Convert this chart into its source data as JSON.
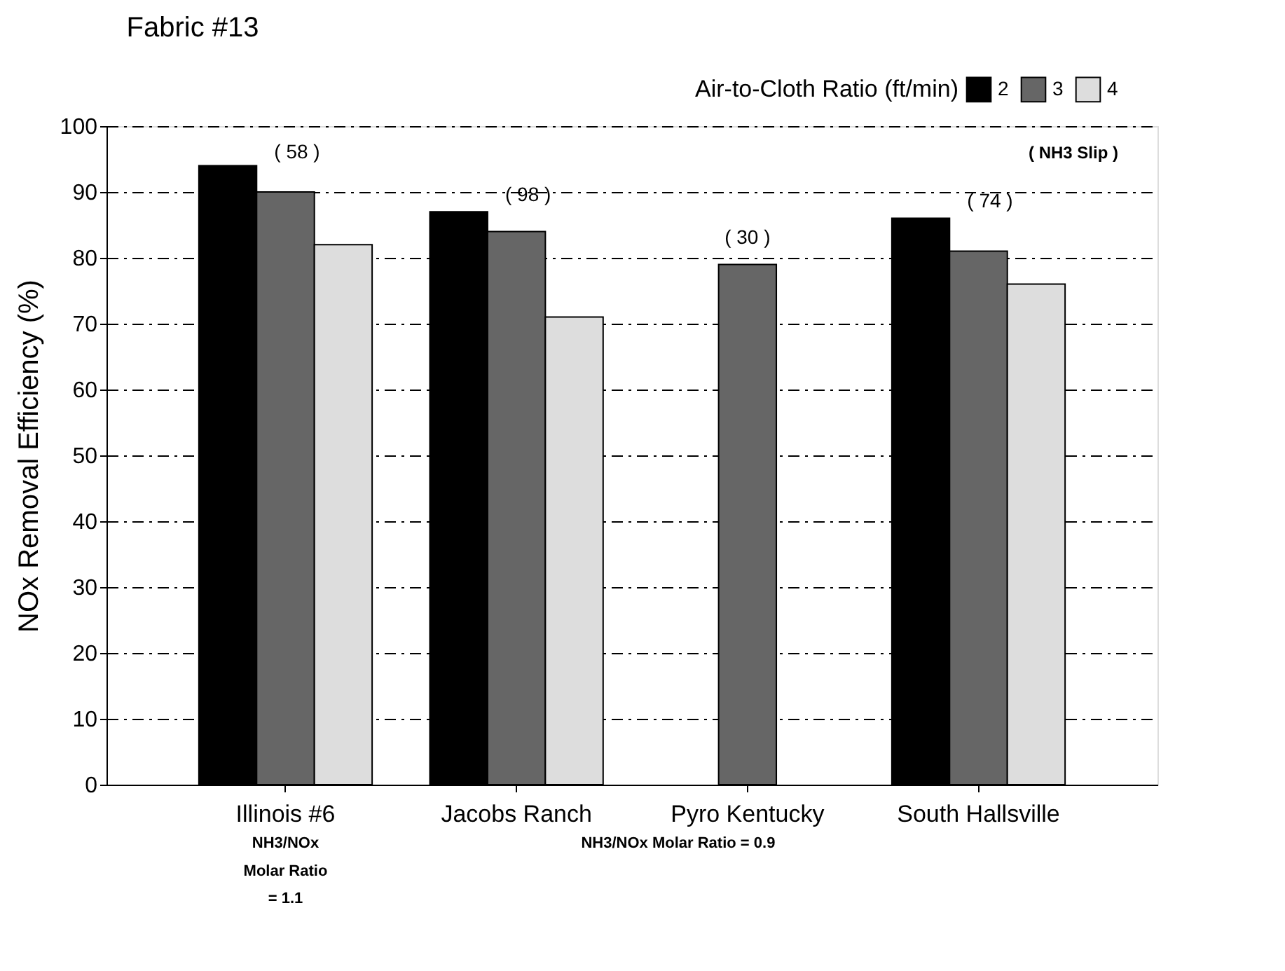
{
  "chart_data": {
    "type": "bar",
    "title": "Fabric #13",
    "ylabel": "NOx Removal Efficiency (%)",
    "legend_title": "Air-to-Cloth Ratio (ft/min)",
    "categories": [
      "Illinois #6",
      "Jacobs Ranch",
      "Pyro Kentucky",
      "South Hallsville"
    ],
    "series": [
      {
        "name": "2",
        "color": "#000000",
        "values": [
          94,
          87,
          null,
          86
        ]
      },
      {
        "name": "3",
        "color": "#666666",
        "values": [
          90,
          84,
          79,
          81
        ]
      },
      {
        "name": "4",
        "color": "#dddddd",
        "values": [
          82,
          71,
          null,
          76
        ]
      }
    ],
    "ylim": [
      0,
      100
    ],
    "yticks": [
      0,
      10,
      20,
      30,
      40,
      50,
      60,
      70,
      80,
      90,
      100
    ],
    "grid": "y",
    "legend": "top right",
    "annotations": [
      "( 58 )",
      "( 98 )",
      "( 30 )",
      "( 74 )",
      "( NH3 Slip )",
      "NH3/NOx Molar Ratio = 1.1",
      "NH3/NOx Molar Ratio = 0.9"
    ]
  }
}
